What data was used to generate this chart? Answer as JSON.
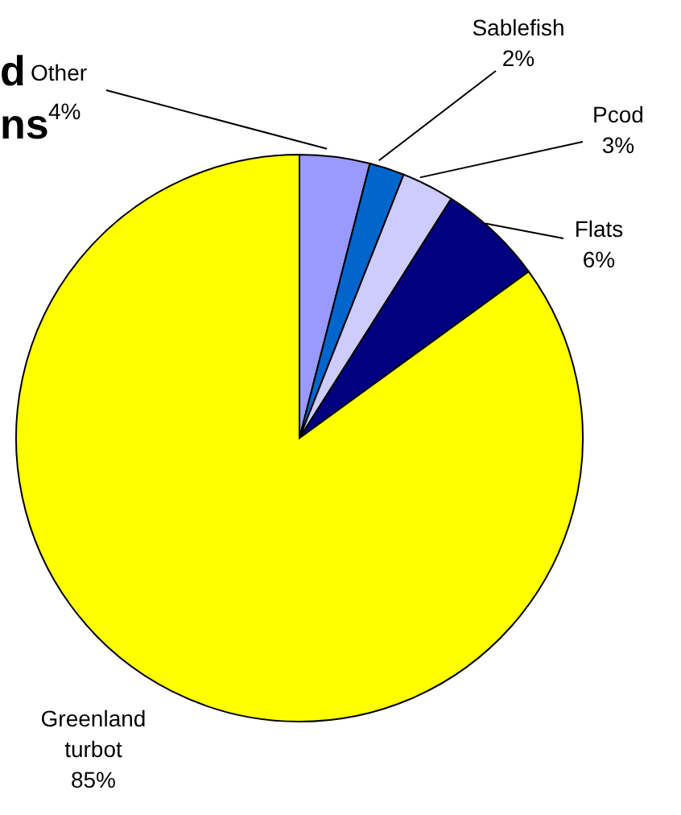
{
  "chart_data": {
    "type": "pie",
    "title": "d\nns",
    "categories": [
      "Other",
      "Sablefish",
      "Pcod",
      "Flats",
      "Greenland turbot"
    ],
    "values": [
      4,
      2,
      3,
      6,
      85
    ],
    "value_labels": [
      "4%",
      "2%",
      "3%",
      "6%",
      "85%"
    ],
    "colors": [
      "#9999ff",
      "#0066cc",
      "#ccccff",
      "#000080",
      "#ffff00"
    ]
  }
}
